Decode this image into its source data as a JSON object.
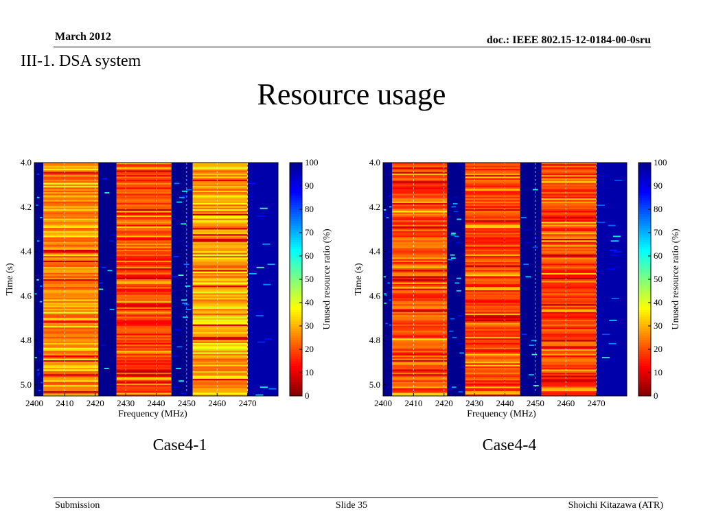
{
  "header": {
    "date": "March 2012",
    "doc": "doc.: IEEE 802.15-12-0184-00-0sru"
  },
  "section": "III-1. DSA system",
  "title": "Resource usage",
  "footer": {
    "left": "Submission",
    "center": "Slide 35",
    "right": "Shoichi Kitazawa (ATR)"
  },
  "colormap": [
    "#7f0000",
    "#ff0000",
    "#ff7f00",
    "#ffff00",
    "#7fff7f",
    "#00ffff",
    "#007fff",
    "#0000ff",
    "#00008f"
  ],
  "chart_data": [
    {
      "type": "heatmap",
      "caption": "Case4-1",
      "xlabel": "Frequency (MHz)",
      "ylabel": "Time (s)",
      "colorbar_label": "Unused resource ratio (%)",
      "xlim": [
        2400,
        2480
      ],
      "ylim": [
        4.0,
        5.05
      ],
      "y_inverted": true,
      "xticks": [
        2400,
        2410,
        2420,
        2430,
        2440,
        2450,
        2460,
        2470
      ],
      "yticks": [
        "4.0",
        "4.2",
        "4.4",
        "4.6",
        "4.8",
        "5.0"
      ],
      "colorbar_ticks": [
        0,
        10,
        20,
        30,
        40,
        50,
        60,
        70,
        80,
        90,
        100
      ],
      "channels": [
        {
          "from": 2400,
          "to": 2403,
          "unused_pct": 100
        },
        {
          "from": 2403,
          "to": 2421,
          "unused_pct": 25
        },
        {
          "from": 2421,
          "to": 2427,
          "unused_pct": 100
        },
        {
          "from": 2427,
          "to": 2445,
          "unused_pct": 18
        },
        {
          "from": 2445,
          "to": 2452,
          "unused_pct": 100
        },
        {
          "from": 2452,
          "to": 2470,
          "unused_pct": 27
        },
        {
          "from": 2470,
          "to": 2480,
          "unused_pct": 97
        }
      ]
    },
    {
      "type": "heatmap",
      "caption": "Case4-4",
      "xlabel": "Frequency (MHz)",
      "ylabel": "Time (s)",
      "colorbar_label": "Unused resource ratio (%)",
      "xlim": [
        2400,
        2480
      ],
      "ylim": [
        4.0,
        5.05
      ],
      "y_inverted": true,
      "xticks": [
        2400,
        2410,
        2420,
        2430,
        2440,
        2450,
        2460,
        2470
      ],
      "yticks": [
        "4.0",
        "4.2",
        "4.4",
        "4.6",
        "4.8",
        "5.0"
      ],
      "colorbar_ticks": [
        0,
        10,
        20,
        30,
        40,
        50,
        60,
        70,
        80,
        90,
        100
      ],
      "channels": [
        {
          "from": 2400,
          "to": 2403,
          "unused_pct": 100
        },
        {
          "from": 2403,
          "to": 2421,
          "unused_pct": 20
        },
        {
          "from": 2421,
          "to": 2427,
          "unused_pct": 100
        },
        {
          "from": 2427,
          "to": 2445,
          "unused_pct": 18
        },
        {
          "from": 2445,
          "to": 2452,
          "unused_pct": 100
        },
        {
          "from": 2452,
          "to": 2470,
          "unused_pct": 18
        },
        {
          "from": 2470,
          "to": 2480,
          "unused_pct": 97
        }
      ]
    }
  ]
}
